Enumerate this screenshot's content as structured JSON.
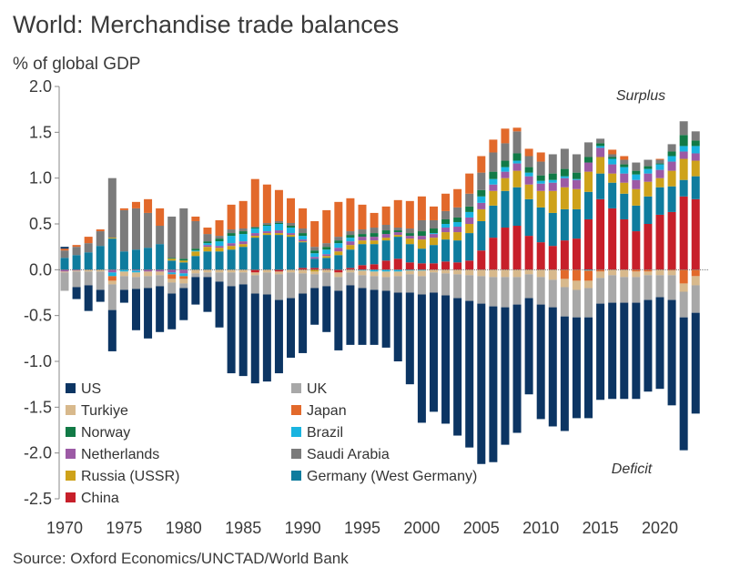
{
  "header": {
    "title": "World: Merchandise trade balances",
    "subtitle": "% of global GDP"
  },
  "footer": {
    "source": "Source: Oxford Economics/UNCTAD/World Bank"
  },
  "annotations": {
    "surplus": "Surplus",
    "deficit": "Deficit"
  },
  "colors": {
    "US": "#0c3563",
    "UK": "#a8a8a8",
    "Turkiye": "#d8b98c",
    "Japan": "#e2692b",
    "Norway": "#117a46",
    "Brazil": "#19b4e0",
    "Netherlands": "#9c5aa5",
    "Saudi Arabia": "#7b7b7b",
    "Russia (USSR)": "#cea21a",
    "Germany (West Germany)": "#0f7c9e",
    "China": "#c71f2a"
  },
  "chart_data": {
    "type": "bar",
    "stacked": true,
    "ylim": [
      -2.5,
      2.0
    ],
    "yticks": [
      -2.5,
      -2.0,
      -1.5,
      -1.0,
      -0.5,
      0.0,
      0.5,
      1.0,
      1.5,
      2.0
    ],
    "ytick_labels": [
      "-2.5",
      "-2.0",
      "-1.5",
      "-1.0",
      "-0.5",
      "0.0",
      "0.5",
      "1.0",
      "1.5",
      "2.0"
    ],
    "xtick_labels": [
      "1970",
      "1975",
      "1980",
      "1985",
      "1990",
      "1995",
      "2000",
      "2005",
      "2010",
      "2015",
      "2020"
    ],
    "x": [
      1970,
      1971,
      1972,
      1973,
      1974,
      1975,
      1976,
      1977,
      1978,
      1979,
      1980,
      1981,
      1982,
      1983,
      1984,
      1985,
      1986,
      1987,
      1988,
      1989,
      1990,
      1991,
      1992,
      1993,
      1994,
      1995,
      1996,
      1997,
      1998,
      1999,
      2000,
      2001,
      2002,
      2003,
      2004,
      2005,
      2006,
      2007,
      2008,
      2009,
      2010,
      2011,
      2012,
      2013,
      2014,
      2015,
      2016,
      2017,
      2018,
      2019,
      2020,
      2021,
      2022,
      2023
    ],
    "legend_position": "bottom-left",
    "grid": false,
    "series": [
      {
        "name": "China",
        "values": [
          0,
          0,
          0,
          0,
          0,
          0,
          0,
          0,
          0,
          0,
          0,
          0,
          0,
          0,
          0,
          0,
          -0.03,
          0,
          -0.02,
          0,
          0.02,
          0.02,
          0.01,
          -0.03,
          0.02,
          0.05,
          0.06,
          0.1,
          0.12,
          0.08,
          0.07,
          0.07,
          0.09,
          0.08,
          0.1,
          0.21,
          0.35,
          0.46,
          0.48,
          0.37,
          0.3,
          0.26,
          0.32,
          0.34,
          0.55,
          0.77,
          0.67,
          0.55,
          0.42,
          0.5,
          0.6,
          0.63,
          0.8,
          0.77
        ]
      },
      {
        "name": "Germany (West Germany)",
        "values": [
          0.13,
          0.16,
          0.19,
          0.26,
          0.34,
          0.2,
          0.22,
          0.24,
          0.28,
          0.1,
          0.08,
          0.15,
          0.2,
          0.2,
          0.22,
          0.25,
          0.35,
          0.38,
          0.38,
          0.36,
          0.28,
          0.1,
          0.12,
          0.16,
          0.2,
          0.23,
          0.22,
          0.22,
          0.24,
          0.2,
          0.16,
          0.2,
          0.24,
          0.24,
          0.3,
          0.32,
          0.35,
          0.4,
          0.42,
          0.4,
          0.38,
          0.36,
          0.34,
          0.32,
          0.3,
          0.28,
          0.28,
          0.28,
          0.28,
          0.3,
          0.3,
          0.28,
          0.18,
          0.25
        ]
      },
      {
        "name": "Russia (USSR)",
        "values": [
          0,
          0,
          0,
          0,
          0.01,
          0,
          0,
          0,
          0,
          0.02,
          0.02,
          0.05,
          0.05,
          0.04,
          0.04,
          0.03,
          0.02,
          0.02,
          0.02,
          0.02,
          0.01,
          -0.02,
          0.02,
          0.04,
          0.05,
          0.04,
          0.04,
          0.03,
          0.02,
          0.06,
          0.1,
          0.08,
          0.08,
          0.09,
          0.1,
          0.13,
          0.16,
          0.14,
          0.18,
          0.16,
          0.18,
          0.24,
          0.24,
          0.22,
          0.22,
          0.18,
          0.1,
          0.12,
          0.18,
          0.16,
          0.1,
          0.17,
          0.23,
          0.17
        ]
      },
      {
        "name": "Netherlands",
        "values": [
          -0.02,
          -0.01,
          0,
          0,
          -0.03,
          0,
          -0.01,
          -0.02,
          -0.02,
          -0.03,
          -0.04,
          0,
          0.02,
          0.02,
          0.03,
          0.03,
          0.03,
          0.02,
          0.03,
          0.02,
          0.02,
          0.02,
          0.02,
          0.04,
          0.04,
          0.04,
          0.04,
          0.04,
          0.03,
          0.03,
          0.04,
          0.04,
          0.05,
          0.06,
          0.07,
          0.07,
          0.07,
          0.07,
          0.08,
          0.09,
          0.08,
          0.09,
          0.1,
          0.1,
          0.1,
          0.1,
          0.1,
          0.1,
          0.1,
          0.09,
          0.09,
          0.1,
          0.08,
          0.08
        ]
      },
      {
        "name": "Brazil",
        "values": [
          0,
          0,
          0,
          0,
          -0.04,
          -0.02,
          -0.02,
          0,
          0,
          -0.02,
          -0.03,
          0.01,
          0.02,
          0.05,
          0.08,
          0.08,
          0.05,
          0.06,
          0.07,
          0.06,
          0.04,
          0.04,
          0.05,
          0.05,
          0.04,
          -0.01,
          -0.02,
          -0.02,
          -0.02,
          -0.01,
          -0.01,
          0.01,
          0.04,
          0.05,
          0.06,
          0.07,
          0.06,
          0.05,
          0.03,
          0.04,
          0.03,
          0.03,
          0.02,
          0.01,
          -0.01,
          0.02,
          0.06,
          0.07,
          0.06,
          0.05,
          0.06,
          0.06,
          0.06,
          0.08
        ]
      },
      {
        "name": "Norway",
        "values": [
          0,
          0,
          0,
          0,
          0,
          0,
          0,
          0,
          0,
          0.01,
          0.02,
          0.02,
          0.02,
          0.03,
          0.03,
          0.03,
          0.01,
          0.01,
          0.01,
          0.02,
          0.03,
          0.03,
          0.03,
          0.03,
          0.03,
          0.03,
          0.04,
          0.04,
          0.02,
          0.03,
          0.05,
          0.05,
          0.05,
          0.05,
          0.06,
          0.07,
          0.08,
          0.07,
          0.08,
          0.06,
          0.06,
          0.07,
          0.08,
          0.07,
          0.06,
          0.03,
          0.02,
          0.03,
          0.04,
          0.03,
          0.01,
          0.05,
          0.12,
          0.06
        ]
      },
      {
        "name": "Saudi Arabia",
        "values": [
          0.08,
          0.09,
          0.1,
          0.16,
          0.65,
          0.45,
          0.45,
          0.38,
          0.2,
          0.45,
          0.55,
          0.3,
          0.08,
          0.03,
          0.04,
          0.03,
          0.01,
          0.02,
          0.02,
          0.03,
          0.05,
          0.04,
          0.04,
          0.04,
          0.04,
          0.05,
          0.06,
          0.06,
          0.03,
          0.05,
          0.12,
          0.09,
          0.09,
          0.11,
          0.14,
          0.19,
          0.21,
          0.19,
          0.24,
          0.12,
          0.15,
          0.21,
          0.22,
          0.2,
          0.16,
          0.05,
          0.03,
          0.05,
          0.09,
          0.07,
          0.04,
          0.08,
          0.15,
          0.1
        ]
      },
      {
        "name": "Japan",
        "values": [
          0.02,
          0.02,
          0.07,
          0.02,
          -0.05,
          0.02,
          0.07,
          0.15,
          0.19,
          -0.05,
          -0.03,
          0.05,
          0.07,
          0.17,
          0.27,
          0.3,
          0.52,
          0.42,
          0.34,
          0.27,
          0.22,
          0.28,
          0.36,
          0.38,
          0.36,
          0.27,
          0.16,
          0.2,
          0.3,
          0.3,
          0.26,
          0.15,
          0.19,
          0.2,
          0.22,
          0.18,
          0.14,
          0.16,
          0.04,
          0.08,
          0.1,
          0,
          -0.1,
          -0.12,
          -0.11,
          -0.02,
          0.05,
          0.04,
          -0.02,
          -0.02,
          0.01,
          -0.01,
          -0.15,
          -0.07
        ]
      },
      {
        "name": "Turkiye",
        "values": [
          -0.01,
          -0.01,
          -0.02,
          -0.02,
          -0.04,
          -0.05,
          -0.05,
          -0.05,
          -0.04,
          -0.04,
          -0.05,
          -0.04,
          -0.03,
          -0.03,
          -0.03,
          -0.03,
          -0.03,
          -0.03,
          -0.03,
          -0.03,
          -0.04,
          -0.03,
          -0.03,
          -0.05,
          -0.03,
          -0.05,
          -0.05,
          -0.06,
          -0.05,
          -0.04,
          -0.06,
          -0.03,
          -0.04,
          -0.05,
          -0.06,
          -0.07,
          -0.08,
          -0.08,
          -0.08,
          -0.05,
          -0.08,
          -0.11,
          -0.09,
          -0.1,
          -0.08,
          -0.07,
          -0.06,
          -0.08,
          -0.06,
          -0.04,
          -0.06,
          -0.05,
          -0.09,
          -0.1
        ]
      },
      {
        "name": "UK",
        "values": [
          -0.2,
          -0.17,
          -0.15,
          -0.2,
          -0.28,
          -0.15,
          -0.13,
          -0.13,
          -0.12,
          -0.12,
          -0.05,
          -0.04,
          -0.05,
          -0.1,
          -0.15,
          -0.13,
          -0.2,
          -0.24,
          -0.28,
          -0.28,
          -0.22,
          -0.15,
          -0.15,
          -0.15,
          -0.14,
          -0.14,
          -0.15,
          -0.15,
          -0.18,
          -0.2,
          -0.2,
          -0.22,
          -0.24,
          -0.26,
          -0.28,
          -0.3,
          -0.32,
          -0.33,
          -0.3,
          -0.26,
          -0.3,
          -0.3,
          -0.32,
          -0.3,
          -0.32,
          -0.28,
          -0.3,
          -0.28,
          -0.28,
          -0.27,
          -0.24,
          -0.27,
          -0.28,
          -0.3
        ]
      },
      {
        "name": "US",
        "values": [
          0.02,
          -0.13,
          -0.28,
          -0.13,
          -0.45,
          -0.14,
          -0.45,
          -0.55,
          -0.5,
          -0.39,
          -0.35,
          -0.3,
          -0.38,
          -0.5,
          -0.95,
          -1.0,
          -0.98,
          -0.95,
          -0.8,
          -0.65,
          -0.65,
          -0.4,
          -0.5,
          -0.65,
          -0.65,
          -0.62,
          -0.6,
          -0.62,
          -0.75,
          -1.0,
          -1.4,
          -1.3,
          -1.4,
          -1.5,
          -1.6,
          -1.75,
          -1.7,
          -1.5,
          -1.4,
          -1.05,
          -1.25,
          -1.3,
          -1.25,
          -1.1,
          -1.1,
          -1.05,
          -1.05,
          -1.05,
          -1.05,
          -1.0,
          -1.0,
          -1.15,
          -1.45,
          -1.1
        ]
      }
    ],
    "legend": [
      {
        "name": "US",
        "col": 0
      },
      {
        "name": "UK",
        "col": 1
      },
      {
        "name": "Turkiye",
        "col": 0
      },
      {
        "name": "Japan",
        "col": 1
      },
      {
        "name": "Norway",
        "col": 0
      },
      {
        "name": "Brazil",
        "col": 1
      },
      {
        "name": "Netherlands",
        "col": 0
      },
      {
        "name": "Saudi Arabia",
        "col": 1
      },
      {
        "name": "Russia (USSR)",
        "col": 0
      },
      {
        "name": "Germany (West Germany)",
        "col": 1
      },
      {
        "name": "China",
        "col": 0
      }
    ]
  }
}
